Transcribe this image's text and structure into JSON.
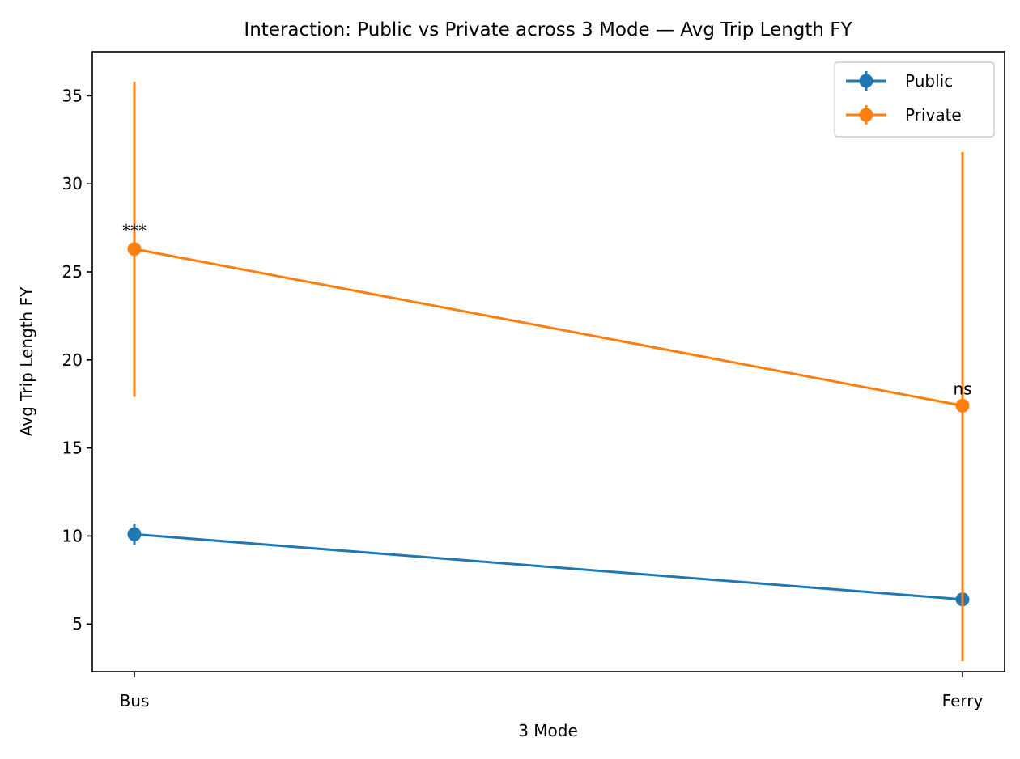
{
  "chart_data": {
    "type": "line",
    "title": "Interaction: Public vs Private across 3 Mode — Avg Trip Length FY",
    "xlabel": "3 Mode",
    "ylabel": "Avg Trip Length FY",
    "categories": [
      "Bus",
      "Ferry"
    ],
    "ylim": [
      2.3,
      37.5
    ],
    "yticks": [
      5,
      10,
      15,
      20,
      25,
      30,
      35
    ],
    "grid": false,
    "legend_position": "top-right",
    "series": [
      {
        "name": "Public",
        "color": "#1f77b4",
        "values": [
          10.1,
          6.4
        ],
        "error_low": [
          9.5,
          3.9
        ],
        "error_high": [
          10.7,
          9.0
        ]
      },
      {
        "name": "Private",
        "color": "#ff7f0e",
        "values": [
          26.3,
          17.4
        ],
        "error_low": [
          17.9,
          2.9
        ],
        "error_high": [
          35.8,
          31.8
        ]
      }
    ],
    "annotations": [
      {
        "category": "Bus",
        "y": 27.4,
        "text": "***"
      },
      {
        "category": "Ferry",
        "y": 18.4,
        "text": "ns"
      }
    ]
  }
}
